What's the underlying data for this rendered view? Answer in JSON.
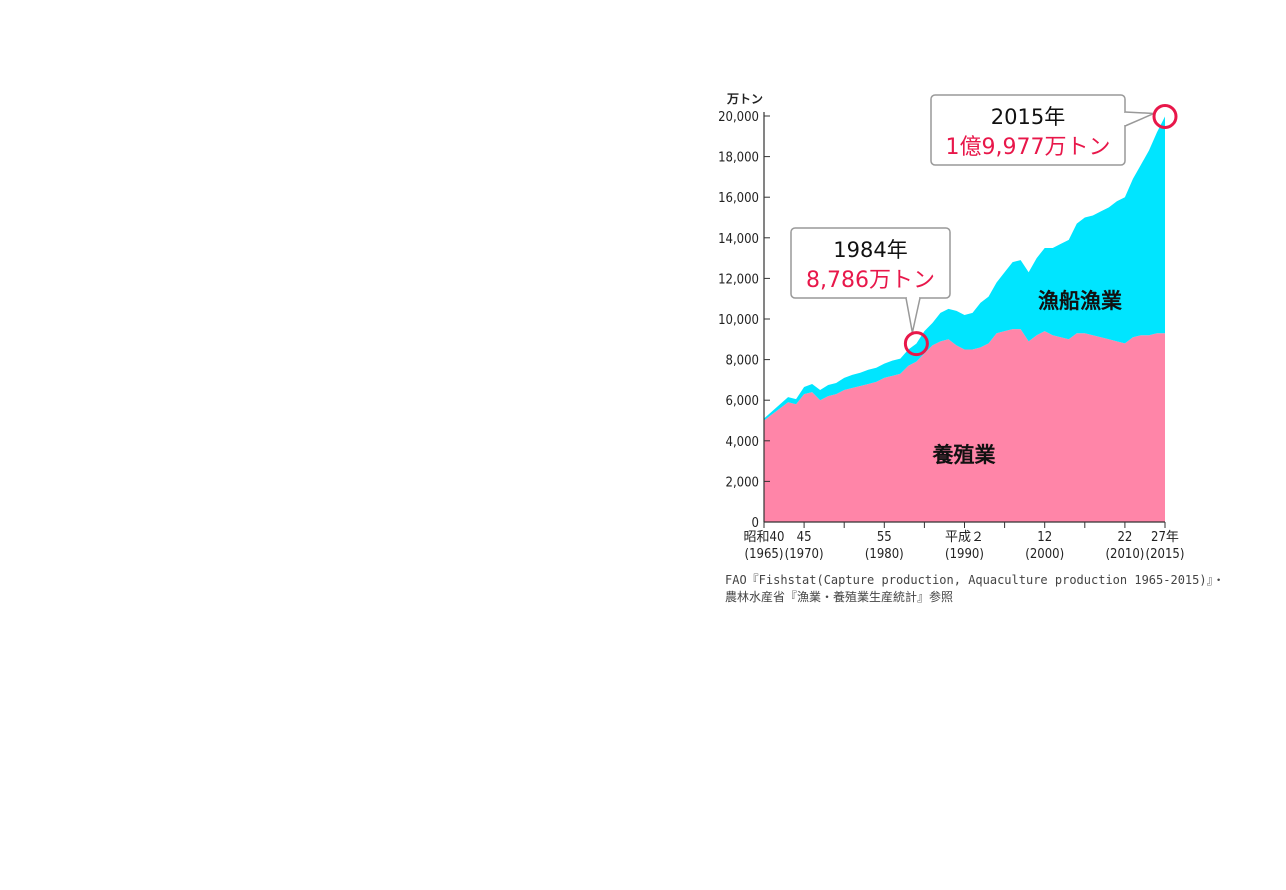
{
  "chart_data": {
    "type": "area",
    "stacked": true,
    "unit_label": "万トン",
    "y_ticks": [
      "20,000",
      "18,000",
      "16,000",
      "14,000",
      "12,000",
      "10,000",
      "8,000",
      "6,000",
      "4,000",
      "2,000",
      "0"
    ],
    "y_tick_values": [
      20000,
      18000,
      16000,
      14000,
      12000,
      10000,
      8000,
      6000,
      4000,
      2000,
      0
    ],
    "ylim": [
      0,
      20000
    ],
    "xlim": [
      1965,
      2015
    ],
    "x_ticks": [
      {
        "year": 1965,
        "era": "昭和40",
        "western": "(1965)"
      },
      {
        "year": 1970,
        "era": "45",
        "western": "(1970)"
      },
      {
        "year": 1975,
        "era": "",
        "western": ""
      },
      {
        "year": 1980,
        "era": "55",
        "western": "(1980)"
      },
      {
        "year": 1985,
        "era": "",
        "western": ""
      },
      {
        "year": 1990,
        "era": "平成２",
        "western": "(1990)"
      },
      {
        "year": 1995,
        "era": "",
        "western": ""
      },
      {
        "year": 2000,
        "era": "12",
        "western": "(2000)"
      },
      {
        "year": 2005,
        "era": "",
        "western": ""
      },
      {
        "year": 2010,
        "era": "22",
        "western": "(2010)"
      },
      {
        "year": 2015,
        "era": "27年",
        "western": "(2015)"
      }
    ],
    "x": [
      1965,
      1966,
      1967,
      1968,
      1969,
      1970,
      1971,
      1972,
      1973,
      1974,
      1975,
      1976,
      1977,
      1978,
      1979,
      1980,
      1981,
      1982,
      1983,
      1984,
      1985,
      1986,
      1987,
      1988,
      1989,
      1990,
      1991,
      1992,
      1993,
      1994,
      1995,
      1996,
      1997,
      1998,
      1999,
      2000,
      2001,
      2002,
      2003,
      2004,
      2005,
      2006,
      2007,
      2008,
      2009,
      2010,
      2011,
      2012,
      2013,
      2014,
      2015
    ],
    "series": [
      {
        "name": "養殖業",
        "color": "#ff85a8",
        "values": [
          5000,
          5300,
          5600,
          5900,
          5800,
          6300,
          6400,
          6000,
          6200,
          6300,
          6500,
          6600,
          6700,
          6800,
          6900,
          7100,
          7200,
          7300,
          7700,
          7900,
          8300,
          8700,
          8900,
          9000,
          8700,
          8500,
          8500,
          8600,
          8800,
          9300,
          9400,
          9500,
          9500,
          8900,
          9200,
          9400,
          9200,
          9100,
          9000,
          9300,
          9300,
          9200,
          9100,
          9000,
          8900,
          8800,
          9100,
          9200,
          9200,
          9300,
          9300
        ]
      },
      {
        "name": "漁船漁業",
        "color": "#00e5ff",
        "values": [
          100,
          150,
          200,
          250,
          250,
          350,
          400,
          500,
          550,
          550,
          600,
          650,
          650,
          700,
          700,
          700,
          750,
          750,
          800,
          886,
          1100,
          1100,
          1400,
          1500,
          1700,
          1700,
          1800,
          2200,
          2300,
          2500,
          2900,
          3300,
          3400,
          3400,
          3800,
          4100,
          4300,
          4600,
          4900,
          5400,
          5700,
          5900,
          6200,
          6500,
          6900,
          7200,
          7800,
          8400,
          9100,
          9900,
          10677
        ]
      }
    ],
    "callouts": [
      {
        "year_label": "1984年",
        "value_label": "8,786万トン",
        "x": 1984,
        "y": 8786
      },
      {
        "year_label": "2015年",
        "value_label": "1億9,977万トン",
        "x": 2015,
        "y": 19977
      }
    ],
    "highlight_color": "#e8174a"
  },
  "source_line1": "FAO『Fishstat(Capture production, Aquaculture production 1965-2015)』・",
  "source_line2": "農林水産省『漁業・養殖業生産統計』参照"
}
